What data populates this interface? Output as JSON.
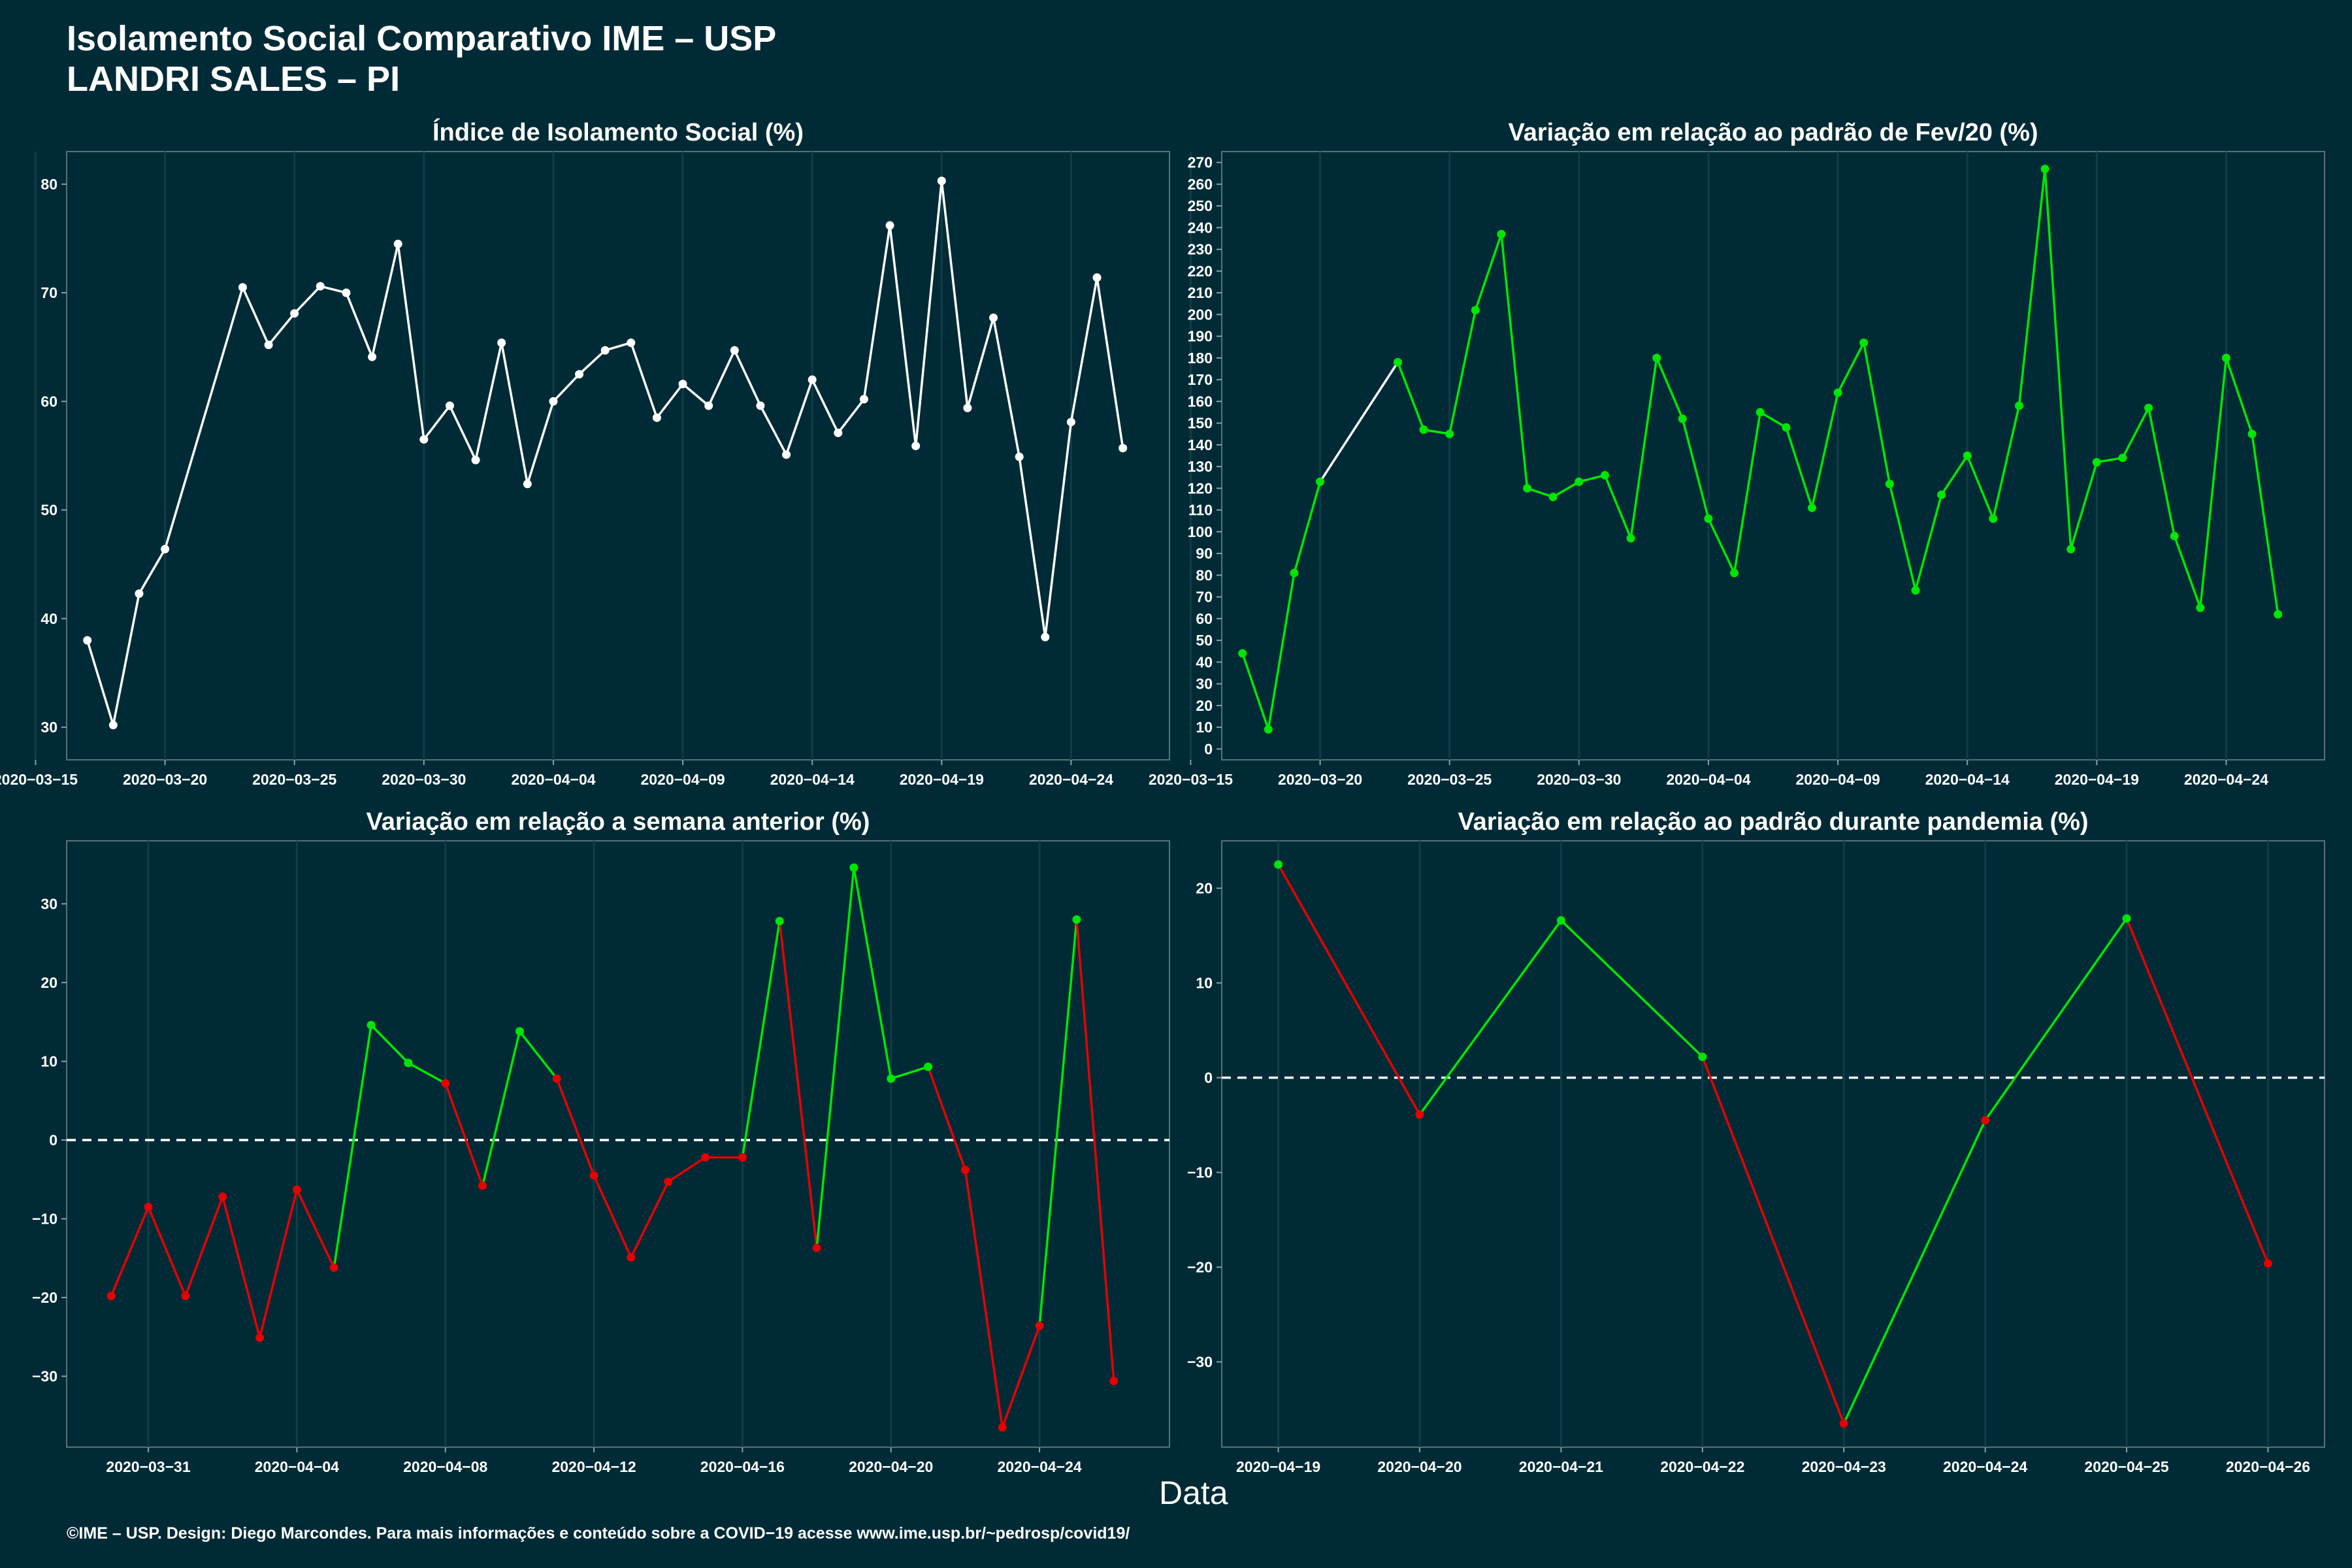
{
  "page": {
    "title_line1": "Isolamento Social Comparativo IME – USP",
    "title_line2": "LANDRI SALES – PI",
    "xlabel": "Data",
    "footer": "©IME – USP. Design: Diego Marcondes. Para mais informações e conteúdo sobre a COVID−19 acesse www.ime.usp.br/~pedrosp/covid19/"
  },
  "colors": {
    "background": "#002b36",
    "grid": "#0f3d48",
    "text": "#ffffff",
    "white_series": "#ffffff",
    "green_series": "#00e600",
    "red_series": "#e60000"
  },
  "chart_data": [
    {
      "type": "line",
      "title": "Índice de Isolamento Social (%)",
      "x_start": "2020-03-17",
      "x_ticks": [
        "2020−03−15",
        "2020−03−20",
        "2020−03−25",
        "2020−03−30",
        "2020−04−04",
        "2020−04−09",
        "2020−04−14",
        "2020−04−19",
        "2020−04−24"
      ],
      "ylim": [
        27,
        83
      ],
      "y_ticks": [
        "30",
        "40",
        "50",
        "60",
        "70",
        "80"
      ],
      "x": [
        0,
        1,
        2,
        3,
        6,
        7,
        8,
        9,
        10,
        11,
        12,
        13,
        14,
        15,
        16,
        17,
        18,
        19,
        20,
        21,
        22,
        23,
        24,
        25,
        26,
        27,
        28,
        29,
        30,
        31,
        32,
        33,
        34,
        35,
        36,
        37,
        38,
        39,
        40
      ],
      "values": [
        38.0,
        30.2,
        42.3,
        46.4,
        70.5,
        65.2,
        68.1,
        70.6,
        70.0,
        64.1,
        74.5,
        56.5,
        59.6,
        54.6,
        65.4,
        52.4,
        60.0,
        62.5,
        64.7,
        65.4,
        58.5,
        61.6,
        59.6,
        64.7,
        59.6,
        55.1,
        62.0,
        57.1,
        60.2,
        76.2,
        55.9,
        80.3,
        59.4,
        67.7,
        54.9,
        38.3,
        58.1,
        71.4,
        55.7
      ],
      "series_color": "white"
    },
    {
      "type": "line",
      "title": "Variação em relação ao padrão de Fev/20 (%)",
      "x_start": "2020-03-17",
      "x_ticks": [
        "2020−03−15",
        "2020−03−20",
        "2020−03−25",
        "2020−03−30",
        "2020−04−04",
        "2020−04−09",
        "2020−04−14",
        "2020−04−19",
        "2020−04−24"
      ],
      "ylim": [
        -5,
        275
      ],
      "y_ticks": [
        "0",
        "10",
        "20",
        "30",
        "40",
        "50",
        "60",
        "70",
        "80",
        "90",
        "100",
        "110",
        "120",
        "130",
        "140",
        "150",
        "160",
        "170",
        "180",
        "190",
        "200",
        "210",
        "220",
        "230",
        "240",
        "250",
        "260",
        "270"
      ],
      "x": [
        0,
        1,
        2,
        3,
        6,
        7,
        8,
        9,
        10,
        11,
        12,
        13,
        14,
        15,
        16,
        17,
        18,
        19,
        20,
        21,
        22,
        23,
        24,
        25,
        26,
        27,
        28,
        29,
        30,
        31,
        32,
        33,
        34,
        35,
        36,
        37,
        38,
        39,
        40
      ],
      "values": [
        44,
        9,
        81,
        123,
        178,
        147,
        145,
        202,
        237,
        120,
        116,
        123,
        126,
        97,
        180,
        152,
        106,
        81,
        155,
        148,
        111,
        164,
        187,
        122,
        73,
        117,
        135,
        106,
        158,
        267,
        92,
        132,
        134,
        157,
        98,
        65,
        180,
        145,
        62
      ],
      "segment_colors": [
        "green",
        "green",
        "green",
        "white",
        "green",
        "green",
        "green",
        "green",
        "green",
        "green",
        "green",
        "green",
        "green",
        "green",
        "green",
        "green",
        "green",
        "green",
        "green",
        "green",
        "green",
        "green",
        "green",
        "green",
        "green",
        "green",
        "green",
        "green",
        "green",
        "green",
        "green",
        "green",
        "green",
        "green",
        "green",
        "green",
        "green",
        "green"
      ],
      "point_colors": [
        "green",
        "green",
        "green",
        "green",
        "green",
        "green",
        "green",
        "green",
        "green",
        "green",
        "green",
        "green",
        "green",
        "green",
        "green",
        "green",
        "green",
        "green",
        "green",
        "green",
        "green",
        "green",
        "green",
        "green",
        "green",
        "green",
        "green",
        "green",
        "green",
        "green",
        "green",
        "green",
        "green",
        "green",
        "green",
        "green",
        "green",
        "green",
        "green"
      ]
    },
    {
      "type": "line",
      "title": "Variação em relação a semana anterior (%)",
      "x_start": "2020-03-30",
      "x_ticks": [
        "2020−03−31",
        "2020−04−04",
        "2020−04−08",
        "2020−04−12",
        "2020−04−16",
        "2020−04−20",
        "2020−04−24"
      ],
      "ylim": [
        -39,
        38
      ],
      "y_ticks": [
        "−30",
        "−20",
        "−10",
        "0",
        "10",
        "20",
        "30"
      ],
      "reference_line": 0,
      "x": [
        0,
        1,
        2,
        3,
        4,
        5,
        6,
        7,
        8,
        9,
        10,
        11,
        12,
        13,
        14,
        15,
        16,
        17,
        18,
        19,
        20,
        21,
        22,
        23,
        24,
        25,
        26,
        27
      ],
      "values": [
        -19.8,
        -8.5,
        -19.8,
        -7.2,
        -25.1,
        -6.3,
        -16.2,
        14.6,
        9.8,
        7.2,
        -5.8,
        13.8,
        7.8,
        -4.5,
        -14.9,
        -5.3,
        -2.2,
        -2.2,
        27.8,
        -13.7,
        34.6,
        7.8,
        9.3,
        -3.8,
        -36.5,
        -23.6,
        28.0,
        -30.6
      ],
      "segment_colors": [
        "red",
        "red",
        "red",
        "red",
        "red",
        "red",
        "green",
        "green",
        "green",
        "red",
        "green",
        "green",
        "red",
        "red",
        "red",
        "red",
        "red",
        "green",
        "red",
        "green",
        "green",
        "green",
        "red",
        "red",
        "red",
        "green",
        "red"
      ],
      "point_colors": [
        "red",
        "red",
        "red",
        "red",
        "red",
        "red",
        "red",
        "green",
        "green",
        "red",
        "red",
        "green",
        "red",
        "red",
        "red",
        "red",
        "red",
        "red",
        "green",
        "red",
        "green",
        "green",
        "green",
        "red",
        "red",
        "red",
        "green",
        "red"
      ]
    },
    {
      "type": "line",
      "title": "Variação em relação ao padrão durante pandemia (%)",
      "x_start": "2020-04-19",
      "x_ticks": [
        "2020−04−19",
        "2020−04−20",
        "2020−04−21",
        "2020−04−22",
        "2020−04−23",
        "2020−04−24",
        "2020−04−25",
        "2020−04−26"
      ],
      "ylim": [
        -39,
        25
      ],
      "y_ticks": [
        "−30",
        "−20",
        "−10",
        "0",
        "10",
        "20"
      ],
      "reference_line": 0,
      "x": [
        0,
        1,
        2,
        3,
        4,
        5,
        6,
        7
      ],
      "values": [
        22.5,
        -3.9,
        16.6,
        2.2,
        -36.5,
        -4.5,
        16.8,
        -19.6
      ],
      "segment_colors": [
        "red",
        "green",
        "green",
        "red",
        "green",
        "green",
        "red"
      ],
      "point_colors": [
        "green",
        "red",
        "green",
        "green",
        "red",
        "red",
        "green",
        "red"
      ]
    }
  ]
}
